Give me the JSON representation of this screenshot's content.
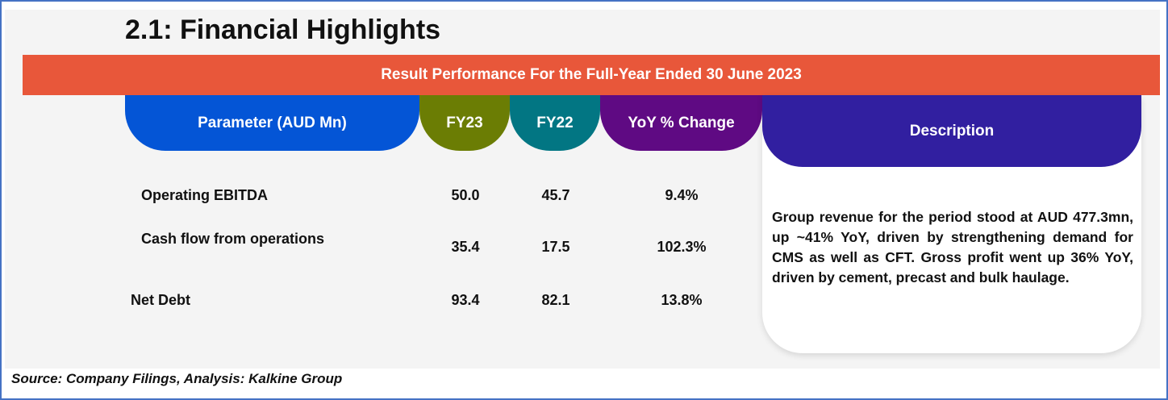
{
  "title": "2.1: Financial Highlights",
  "banner": "Result Performance For the Full-Year Ended 30 June 2023",
  "headers": {
    "parameter": "Parameter (AUD Mn)",
    "fy23": "FY23",
    "fy22": "FY22",
    "yoy": "YoY % Change",
    "description": "Description"
  },
  "rows": [
    {
      "parameter": "Operating EBITDA",
      "fy23": "50.0",
      "fy22": "45.7",
      "yoy": "9.4%"
    },
    {
      "parameter": "Cash flow from operations",
      "fy23": "35.4",
      "fy22": "17.5",
      "yoy": "102.3%"
    },
    {
      "parameter": "Net Debt",
      "fy23": "93.4",
      "fy22": "82.1",
      "yoy": "13.8%"
    }
  ],
  "description": "Group revenue for the period stood at AUD 477.3mn, up ~41% YoY, driven by strengthening demand for CMS as well as CFT. Gross profit went up 36% YoY, driven by cement, precast and bulk haulage.",
  "source": "Source: Company Filings, Analysis: Kalkine Group",
  "colors": {
    "banner": "#e8573a",
    "parameter": "#0455d6",
    "fy23": "#6b7d04",
    "fy22": "#027683",
    "yoy": "#5f0a83",
    "description": "#311fa0"
  }
}
